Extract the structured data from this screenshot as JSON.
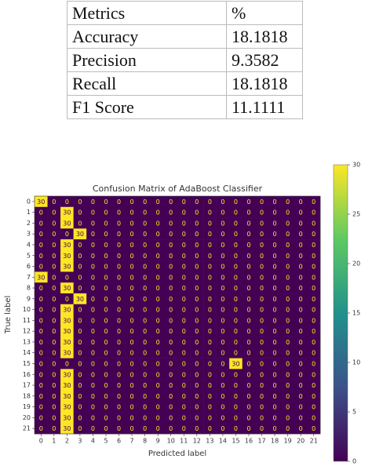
{
  "table": {
    "header": [
      "Metrics",
      "%"
    ],
    "rows": [
      [
        "Accuracy",
        18.1818
      ],
      [
        "Precision",
        9.3582
      ],
      [
        "Recall",
        18.1818
      ],
      [
        "F1 Score",
        11.1111
      ]
    ]
  },
  "chart_data": {
    "type": "heatmap",
    "title": "Confusion Matrix of AdaBoost Classifier",
    "xlabel": "Predicted label",
    "ylabel": "True label",
    "x_categories": [
      0,
      1,
      2,
      3,
      4,
      5,
      6,
      7,
      8,
      9,
      10,
      11,
      12,
      13,
      14,
      15,
      16,
      17,
      18,
      19,
      20,
      21
    ],
    "y_categories": [
      0,
      1,
      2,
      3,
      4,
      5,
      6,
      7,
      8,
      9,
      10,
      11,
      12,
      13,
      14,
      15,
      16,
      17,
      18,
      19,
      20,
      21
    ],
    "colormap": "viridis",
    "zlim": [
      0,
      30
    ],
    "zticks": [
      0,
      5,
      10,
      15,
      20,
      25,
      30
    ],
    "matrix": [
      [
        30,
        0,
        0,
        0,
        0,
        0,
        0,
        0,
        0,
        0,
        0,
        0,
        0,
        0,
        0,
        0,
        0,
        0,
        0,
        0,
        0,
        0
      ],
      [
        0,
        0,
        30,
        0,
        0,
        0,
        0,
        0,
        0,
        0,
        0,
        0,
        0,
        0,
        0,
        0,
        0,
        0,
        0,
        0,
        0,
        0
      ],
      [
        0,
        0,
        30,
        0,
        0,
        0,
        0,
        0,
        0,
        0,
        0,
        0,
        0,
        0,
        0,
        0,
        0,
        0,
        0,
        0,
        0,
        0
      ],
      [
        0,
        0,
        0,
        30,
        0,
        0,
        0,
        0,
        0,
        0,
        0,
        0,
        0,
        0,
        0,
        0,
        0,
        0,
        0,
        0,
        0,
        0
      ],
      [
        0,
        0,
        30,
        0,
        0,
        0,
        0,
        0,
        0,
        0,
        0,
        0,
        0,
        0,
        0,
        0,
        0,
        0,
        0,
        0,
        0,
        0
      ],
      [
        0,
        0,
        30,
        0,
        0,
        0,
        0,
        0,
        0,
        0,
        0,
        0,
        0,
        0,
        0,
        0,
        0,
        0,
        0,
        0,
        0,
        0
      ],
      [
        0,
        0,
        30,
        0,
        0,
        0,
        0,
        0,
        0,
        0,
        0,
        0,
        0,
        0,
        0,
        0,
        0,
        0,
        0,
        0,
        0,
        0
      ],
      [
        30,
        0,
        0,
        0,
        0,
        0,
        0,
        0,
        0,
        0,
        0,
        0,
        0,
        0,
        0,
        0,
        0,
        0,
        0,
        0,
        0,
        0
      ],
      [
        0,
        0,
        30,
        0,
        0,
        0,
        0,
        0,
        0,
        0,
        0,
        0,
        0,
        0,
        0,
        0,
        0,
        0,
        0,
        0,
        0,
        0
      ],
      [
        0,
        0,
        0,
        30,
        0,
        0,
        0,
        0,
        0,
        0,
        0,
        0,
        0,
        0,
        0,
        0,
        0,
        0,
        0,
        0,
        0,
        0
      ],
      [
        0,
        0,
        30,
        0,
        0,
        0,
        0,
        0,
        0,
        0,
        0,
        0,
        0,
        0,
        0,
        0,
        0,
        0,
        0,
        0,
        0,
        0
      ],
      [
        0,
        0,
        30,
        0,
        0,
        0,
        0,
        0,
        0,
        0,
        0,
        0,
        0,
        0,
        0,
        0,
        0,
        0,
        0,
        0,
        0,
        0
      ],
      [
        0,
        0,
        30,
        0,
        0,
        0,
        0,
        0,
        0,
        0,
        0,
        0,
        0,
        0,
        0,
        0,
        0,
        0,
        0,
        0,
        0,
        0
      ],
      [
        0,
        0,
        30,
        0,
        0,
        0,
        0,
        0,
        0,
        0,
        0,
        0,
        0,
        0,
        0,
        0,
        0,
        0,
        0,
        0,
        0,
        0
      ],
      [
        0,
        0,
        30,
        0,
        0,
        0,
        0,
        0,
        0,
        0,
        0,
        0,
        0,
        0,
        0,
        0,
        0,
        0,
        0,
        0,
        0,
        0
      ],
      [
        0,
        0,
        0,
        0,
        0,
        0,
        0,
        0,
        0,
        0,
        0,
        0,
        0,
        0,
        0,
        30,
        0,
        0,
        0,
        0,
        0,
        0
      ],
      [
        0,
        0,
        30,
        0,
        0,
        0,
        0,
        0,
        0,
        0,
        0,
        0,
        0,
        0,
        0,
        0,
        0,
        0,
        0,
        0,
        0,
        0
      ],
      [
        0,
        0,
        30,
        0,
        0,
        0,
        0,
        0,
        0,
        0,
        0,
        0,
        0,
        0,
        0,
        0,
        0,
        0,
        0,
        0,
        0,
        0
      ],
      [
        0,
        0,
        30,
        0,
        0,
        0,
        0,
        0,
        0,
        0,
        0,
        0,
        0,
        0,
        0,
        0,
        0,
        0,
        0,
        0,
        0,
        0
      ],
      [
        0,
        0,
        30,
        0,
        0,
        0,
        0,
        0,
        0,
        0,
        0,
        0,
        0,
        0,
        0,
        0,
        0,
        0,
        0,
        0,
        0,
        0
      ],
      [
        0,
        0,
        30,
        0,
        0,
        0,
        0,
        0,
        0,
        0,
        0,
        0,
        0,
        0,
        0,
        0,
        0,
        0,
        0,
        0,
        0,
        0
      ],
      [
        0,
        0,
        30,
        0,
        0,
        0,
        0,
        0,
        0,
        0,
        0,
        0,
        0,
        0,
        0,
        0,
        0,
        0,
        0,
        0,
        0,
        0
      ]
    ]
  }
}
